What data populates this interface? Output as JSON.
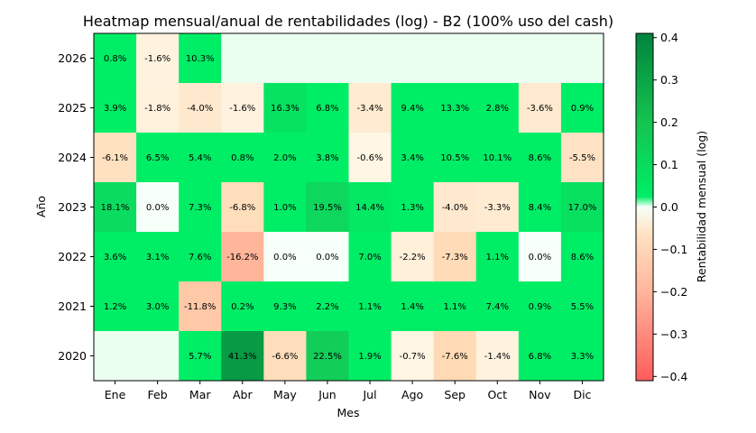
{
  "chart_data": {
    "type": "heatmap",
    "title": "Heatmap mensual/anual de rentabilidades (log) - B2 (100% uso del cash)",
    "xlabel": "Mes",
    "ylabel": "Año",
    "months": [
      "Ene",
      "Feb",
      "Mar",
      "Abr",
      "May",
      "Jun",
      "Jul",
      "Ago",
      "Sep",
      "Oct",
      "Nov",
      "Dic"
    ],
    "years": [
      "2026",
      "2025",
      "2024",
      "2023",
      "2022",
      "2021",
      "2020"
    ],
    "values": [
      [
        0.008,
        -0.016,
        0.098,
        null,
        null,
        null,
        null,
        null,
        null,
        null,
        null,
        null
      ],
      [
        0.038,
        -0.018,
        -0.041,
        -0.016,
        0.151,
        0.066,
        -0.035,
        0.09,
        0.125,
        0.028,
        -0.037,
        0.009
      ],
      [
        -0.063,
        0.063,
        0.053,
        0.008,
        0.02,
        0.037,
        -0.006,
        0.033,
        0.1,
        0.096,
        0.082,
        -0.057
      ],
      [
        0.166,
        0.0,
        0.07,
        -0.07,
        0.01,
        0.178,
        0.135,
        0.013,
        -0.041,
        -0.034,
        0.081,
        0.157
      ],
      [
        0.035,
        0.031,
        0.073,
        -0.177,
        0.0,
        0.0,
        0.068,
        -0.022,
        -0.076,
        0.011,
        0.0,
        0.083
      ],
      [
        0.012,
        0.03,
        -0.126,
        0.002,
        0.089,
        0.022,
        0.011,
        0.014,
        0.011,
        0.071,
        0.009,
        0.054
      ],
      [
        null,
        null,
        0.055,
        0.346,
        -0.068,
        0.203,
        0.019,
        -0.007,
        -0.079,
        -0.014,
        0.066,
        0.032
      ]
    ],
    "labels": [
      [
        "0.8%",
        "-1.6%",
        "10.3%",
        "",
        "",
        "",
        "",
        "",
        "",
        "",
        "",
        ""
      ],
      [
        "3.9%",
        "-1.8%",
        "-4.0%",
        "-1.6%",
        "16.3%",
        "6.8%",
        "-3.4%",
        "9.4%",
        "13.3%",
        "2.8%",
        "-3.6%",
        "0.9%"
      ],
      [
        "-6.1%",
        "6.5%",
        "5.4%",
        "0.8%",
        "2.0%",
        "3.8%",
        "-0.6%",
        "3.4%",
        "10.5%",
        "10.1%",
        "8.6%",
        "-5.5%"
      ],
      [
        "18.1%",
        "0.0%",
        "7.3%",
        "-6.8%",
        "1.0%",
        "19.5%",
        "14.4%",
        "1.3%",
        "-4.0%",
        "-3.3%",
        "8.4%",
        "17.0%"
      ],
      [
        "3.6%",
        "3.1%",
        "7.6%",
        "-16.2%",
        "0.0%",
        "0.0%",
        "7.0%",
        "-2.2%",
        "-7.3%",
        "1.1%",
        "0.0%",
        "8.6%"
      ],
      [
        "1.2%",
        "3.0%",
        "-11.8%",
        "0.2%",
        "9.3%",
        "2.2%",
        "1.1%",
        "1.4%",
        "1.1%",
        "7.4%",
        "0.9%",
        "5.5%"
      ],
      [
        "",
        "",
        "5.7%",
        "41.3%",
        "-6.6%",
        "22.5%",
        "1.9%",
        "-0.7%",
        "-7.6%",
        "-1.4%",
        "6.8%",
        "3.3%"
      ]
    ],
    "colorbar": {
      "label": "Rentabilidad mensual (log)",
      "range": [
        -0.41,
        0.41
      ],
      "ticks": [
        0.4,
        0.3,
        0.2,
        0.1,
        0.0,
        -0.1,
        -0.2,
        -0.3,
        -0.4
      ],
      "tick_labels": [
        "0.4",
        "0.3",
        "0.2",
        "0.1",
        "0.0",
        "−0.1",
        "−0.2",
        "−0.3",
        "−0.4"
      ],
      "colors": {
        "neg_end": "#ff5c5c",
        "neg_mid": "#ffd9b3",
        "neg_near": "#fff8e8",
        "zero": "#f6fff8",
        "pos_near": "#00ee66",
        "pos_mid": "#18c455",
        "pos_end": "#00843d"
      }
    },
    "empty_cell_color": "#ebfff1"
  }
}
